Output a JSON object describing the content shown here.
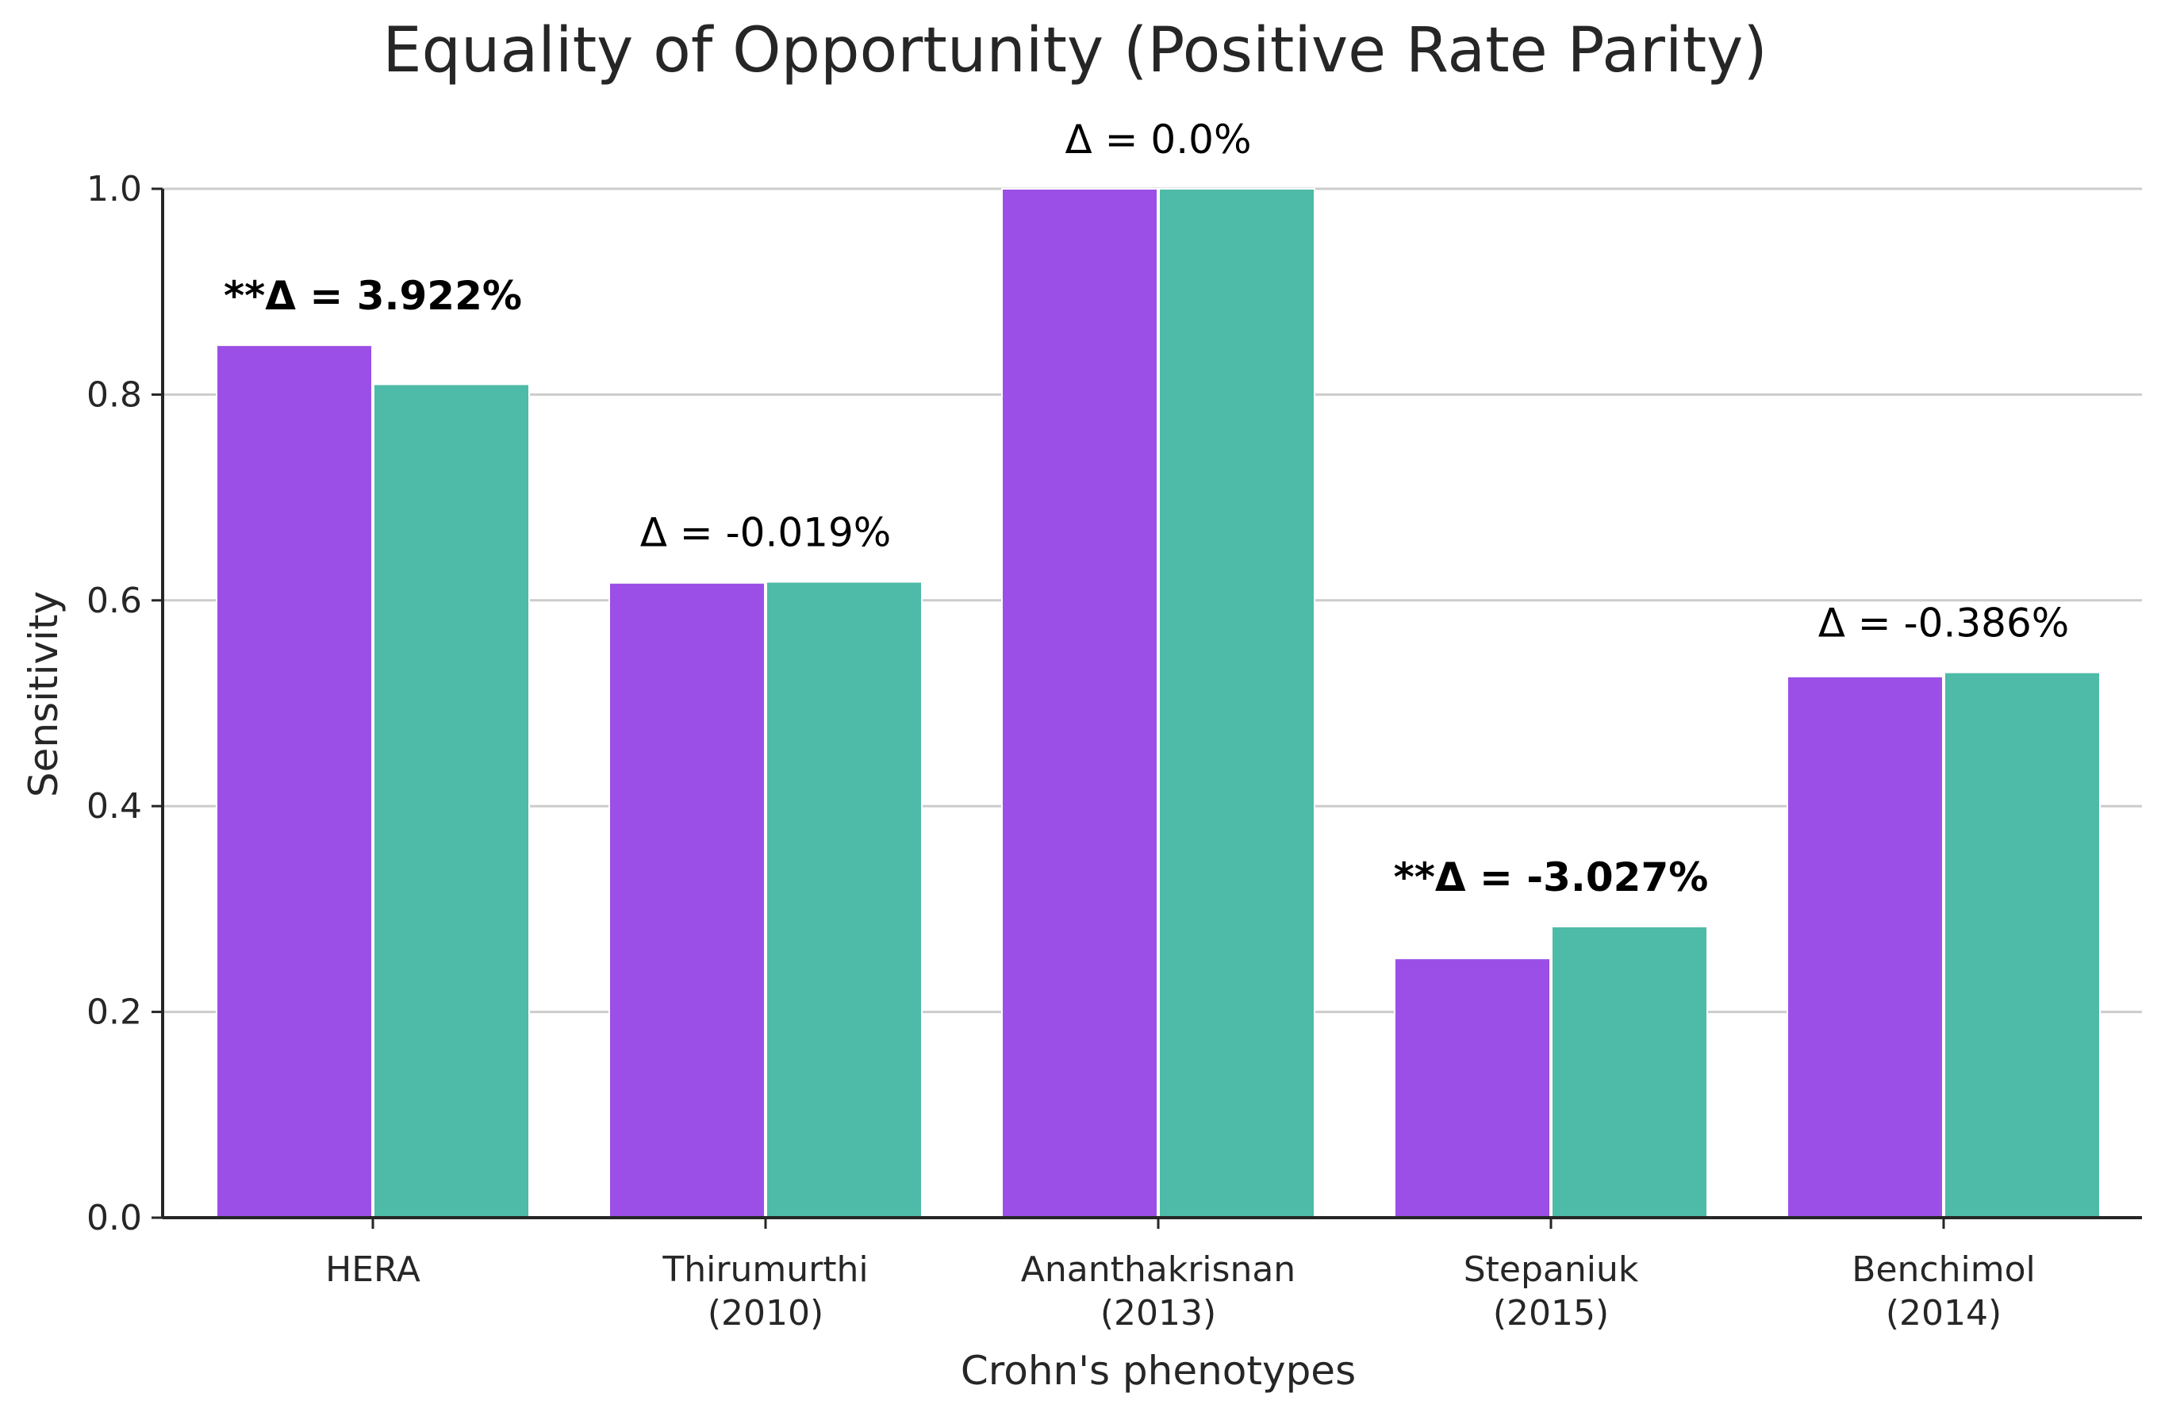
{
  "chart_data": {
    "type": "bar",
    "title": "Equality of Opportunity (Positive Rate Parity)",
    "xlabel": "Crohn's phenotypes",
    "ylabel": "Sensitivity",
    "ylim": [
      0,
      1.0
    ],
    "yticks": [
      "0.0",
      "0.2",
      "0.4",
      "0.6",
      "0.8",
      "1.0"
    ],
    "grid": "horizontal",
    "categories": [
      [
        "HERA"
      ],
      [
        "Thirumurthi",
        "(2010)"
      ],
      [
        "Ananthakrisnan",
        "(2013)"
      ],
      [
        "Stepaniuk",
        "(2015)"
      ],
      [
        "Benchimol",
        "(2014)"
      ]
    ],
    "series": [
      {
        "color": "#9b4fe6",
        "values": [
          0.848,
          0.617,
          1.0,
          0.252,
          0.526
        ]
      },
      {
        "color": "#4dbba7",
        "values": [
          0.81,
          0.618,
          1.0,
          0.283,
          0.53
        ]
      }
    ],
    "annotations": [
      {
        "prefix": "**Δ = ",
        "value": "3.922%",
        "bold": true
      },
      {
        "prefix": "Δ = ",
        "value": "-0.019%",
        "bold": false
      },
      {
        "prefix": "Δ = ",
        "value": "0.0%",
        "bold": false
      },
      {
        "prefix": "**Δ = ",
        "value": "-3.027%",
        "bold": true
      },
      {
        "prefix": "Δ = ",
        "value": "-0.386%",
        "bold": false
      }
    ]
  }
}
